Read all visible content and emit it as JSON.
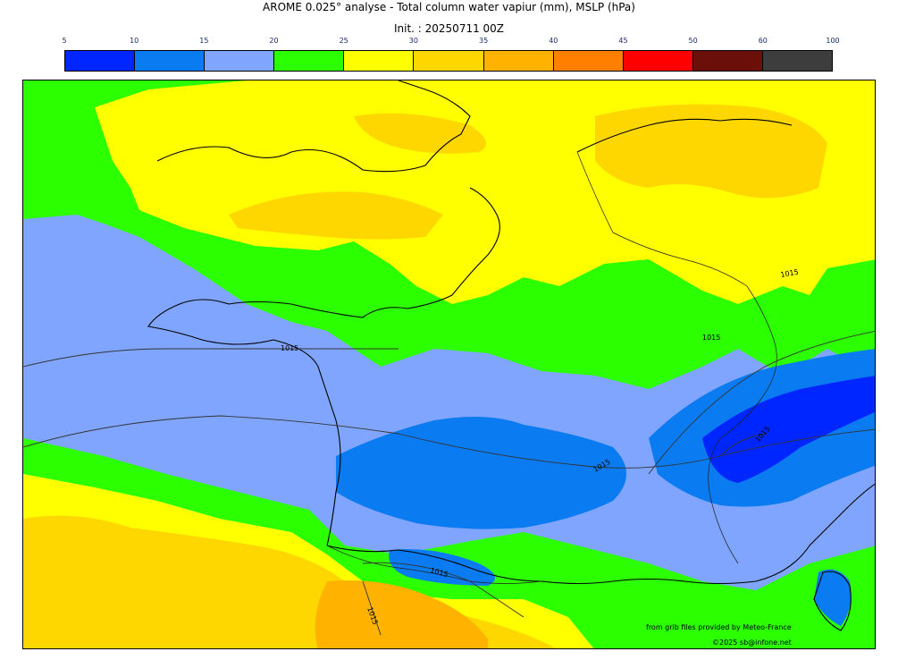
{
  "header": {
    "title": "AROME 0.025° analyse - Total column water vapiur (mm), MSLP (hPa)",
    "init": "Init. : 20250711 00Z"
  },
  "colorbar": {
    "ticks": [
      "5",
      "10",
      "15",
      "20",
      "25",
      "30",
      "35",
      "40",
      "45",
      "50",
      "60",
      "100"
    ],
    "colors": [
      "#0026ff",
      "#0a7bf0",
      "#7fa5ff",
      "#2bff00",
      "#ffff00",
      "#ffd700",
      "#ffb300",
      "#ff7f00",
      "#ff0000",
      "#6b0f0a",
      "#3d3d3d"
    ]
  },
  "map": {
    "isobar_labels": [
      "1015",
      "1015",
      "1015",
      "1015",
      "1015",
      "1015",
      "1015"
    ]
  },
  "footer": {
    "source": "from grib files provided by Meteo-France",
    "copyright": "©2025 sb@infone.net"
  }
}
